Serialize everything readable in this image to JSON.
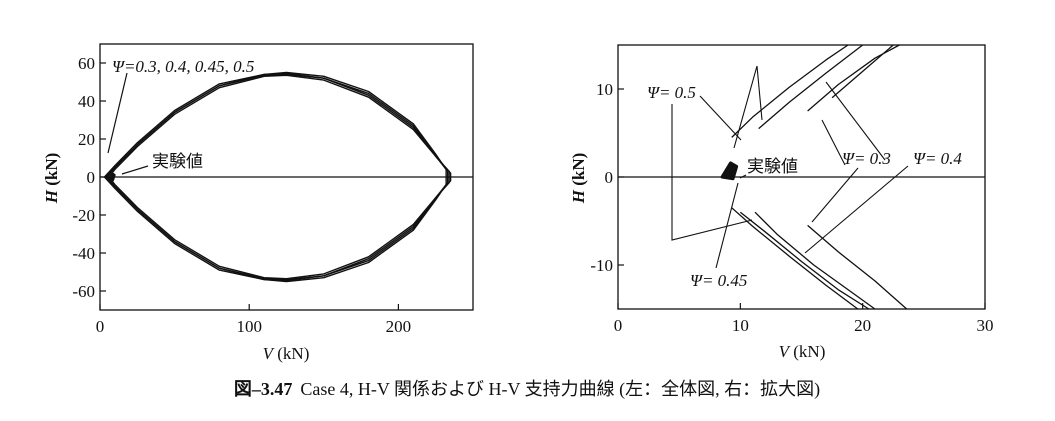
{
  "caption": {
    "label": "図–3.47",
    "text": "Case 4, H-V 関係および H-V 支持力曲線 (左：全体図, 右：拡大図)"
  },
  "chart_data": [
    {
      "type": "line",
      "title": "",
      "xlabel": "V (kN)",
      "ylabel": "H (kN)",
      "xlim": [
        0,
        250
      ],
      "ylim": [
        -70,
        70
      ],
      "xticks": [
        0,
        100,
        200
      ],
      "yticks": [
        -60,
        -40,
        -20,
        0,
        20,
        40,
        60
      ],
      "grid": false,
      "annotations": [
        {
          "text": "Ψ=0.3, 0.4, 0.45, 0.5",
          "target": [
            27,
            20
          ]
        },
        {
          "text": "実験値",
          "target": [
            9,
            1
          ]
        }
      ],
      "series": [
        {
          "name": "Ψ=0.3",
          "kind": "bearing-capacity-envelope",
          "points": [
            [
              3,
              0
            ],
            [
              10,
              6
            ],
            [
              25,
              18
            ],
            [
              50,
              35
            ],
            [
              80,
              49
            ],
            [
              110,
              54
            ],
            [
              125,
              55
            ],
            [
              150,
              53
            ],
            [
              180,
              45
            ],
            [
              210,
              28
            ],
            [
              225,
              12
            ],
            [
              232,
              4
            ],
            [
              232,
              0
            ]
          ]
        },
        {
          "name": "Ψ=0.4",
          "kind": "bearing-capacity-envelope",
          "points": [
            [
              4,
              0
            ],
            [
              10,
              5
            ],
            [
              25,
              17
            ],
            [
              50,
              34
            ],
            [
              80,
              48
            ],
            [
              110,
              54
            ],
            [
              125,
              54.5
            ],
            [
              150,
              52
            ],
            [
              180,
              44
            ],
            [
              210,
              27
            ],
            [
              225,
              11
            ],
            [
              233,
              3
            ],
            [
              233,
              0
            ]
          ]
        },
        {
          "name": "Ψ=0.45",
          "kind": "bearing-capacity-envelope",
          "points": [
            [
              5,
              0
            ],
            [
              10,
              5
            ],
            [
              25,
              17
            ],
            [
              50,
              34
            ],
            [
              80,
              48
            ],
            [
              110,
              53.5
            ],
            [
              125,
              54
            ],
            [
              150,
              52
            ],
            [
              180,
              43
            ],
            [
              210,
              26
            ],
            [
              226,
              10
            ],
            [
              234,
              3
            ],
            [
              234,
              0
            ]
          ]
        },
        {
          "name": "Ψ=0.5",
          "kind": "bearing-capacity-envelope",
          "points": [
            [
              6,
              0
            ],
            [
              10,
              4
            ],
            [
              25,
              16
            ],
            [
              50,
              33
            ],
            [
              80,
              47
            ],
            [
              110,
              53
            ],
            [
              125,
              53.5
            ],
            [
              150,
              51
            ],
            [
              180,
              42
            ],
            [
              210,
              25
            ],
            [
              227,
              9
            ],
            [
              235,
              2
            ],
            [
              235,
              0
            ]
          ]
        },
        {
          "name": "実験値",
          "kind": "experimental-cluster",
          "points": [
            [
              7.5,
              -1
            ],
            [
              8.5,
              1.5
            ],
            [
              9.5,
              1
            ],
            [
              8.5,
              -1.5
            ]
          ]
        }
      ]
    },
    {
      "type": "line",
      "title": "",
      "xlabel": "V (kN)",
      "ylabel": "H (kN)",
      "xlim": [
        0,
        30
      ],
      "ylim": [
        -15,
        15
      ],
      "xticks": [
        0,
        10,
        20,
        30
      ],
      "yticks": [
        -10,
        0,
        10
      ],
      "grid": false,
      "annotations": [
        {
          "text": "Ψ= 0.5",
          "target": [
            9.7,
            4.2
          ]
        },
        {
          "text": "Ψ= 0.3",
          "target": [
            15.5,
            6
          ]
        },
        {
          "text": "Ψ= 0.4",
          "target": [
            17,
            11
          ]
        },
        {
          "text": "Ψ= 0.45",
          "target": [
            10.8,
            -5.3
          ]
        },
        {
          "text": "実験値",
          "target": [
            9.1,
            0
          ]
        }
      ],
      "series": [
        {
          "name": "Ψ=0.5",
          "points": [
            [
              9.3,
              4.5
            ],
            [
              11,
              6.8
            ],
            [
              14,
              10.2
            ],
            [
              17,
              13.3
            ],
            [
              18.8,
              15
            ]
          ]
        },
        {
          "name": "Ψ=0.45",
          "points": [
            [
              11.5,
              5.5
            ],
            [
              14,
              8.5
            ],
            [
              17,
              11.8
            ],
            [
              20,
              15
            ]
          ]
        },
        {
          "name": "Ψ=0.4",
          "points": [
            [
              15.5,
              7.5
            ],
            [
              18,
              10.5
            ],
            [
              21,
              13.5
            ],
            [
              23,
              15
            ]
          ]
        },
        {
          "name": "Ψ=0.3",
          "points": [
            [
              17.5,
              9
            ],
            [
              20,
              12
            ],
            [
              22.5,
              15
            ]
          ]
        },
        {
          "name": "Ψ=0.5 lower",
          "points": [
            [
              9.3,
              -3.5
            ],
            [
              11,
              -5.6
            ],
            [
              14,
              -9
            ],
            [
              17,
              -12.3
            ],
            [
              19.6,
              -15
            ]
          ]
        },
        {
          "name": "Ψ=0.45 lower",
          "points": [
            [
              10,
              -4
            ],
            [
              12,
              -6.2
            ],
            [
              15,
              -9.6
            ],
            [
              18,
              -12.8
            ],
            [
              20.5,
              -15
            ]
          ]
        },
        {
          "name": "Ψ=0.4 lower",
          "points": [
            [
              11.2,
              -4
            ],
            [
              13,
              -6.5
            ],
            [
              16,
              -10
            ],
            [
              19,
              -13
            ],
            [
              21,
              -15
            ]
          ]
        },
        {
          "name": "Ψ=0.3 lower",
          "points": [
            [
              15.5,
              -5.5
            ],
            [
              18,
              -8.5
            ],
            [
              21,
              -11.8
            ],
            [
              23.6,
              -15
            ]
          ]
        },
        {
          "name": "実験値",
          "kind": "experimental-cluster",
          "points": [
            [
              8.5,
              0
            ],
            [
              9.2,
              1.6
            ],
            [
              9.7,
              1.2
            ],
            [
              9.4,
              -0.2
            ]
          ]
        }
      ]
    }
  ]
}
